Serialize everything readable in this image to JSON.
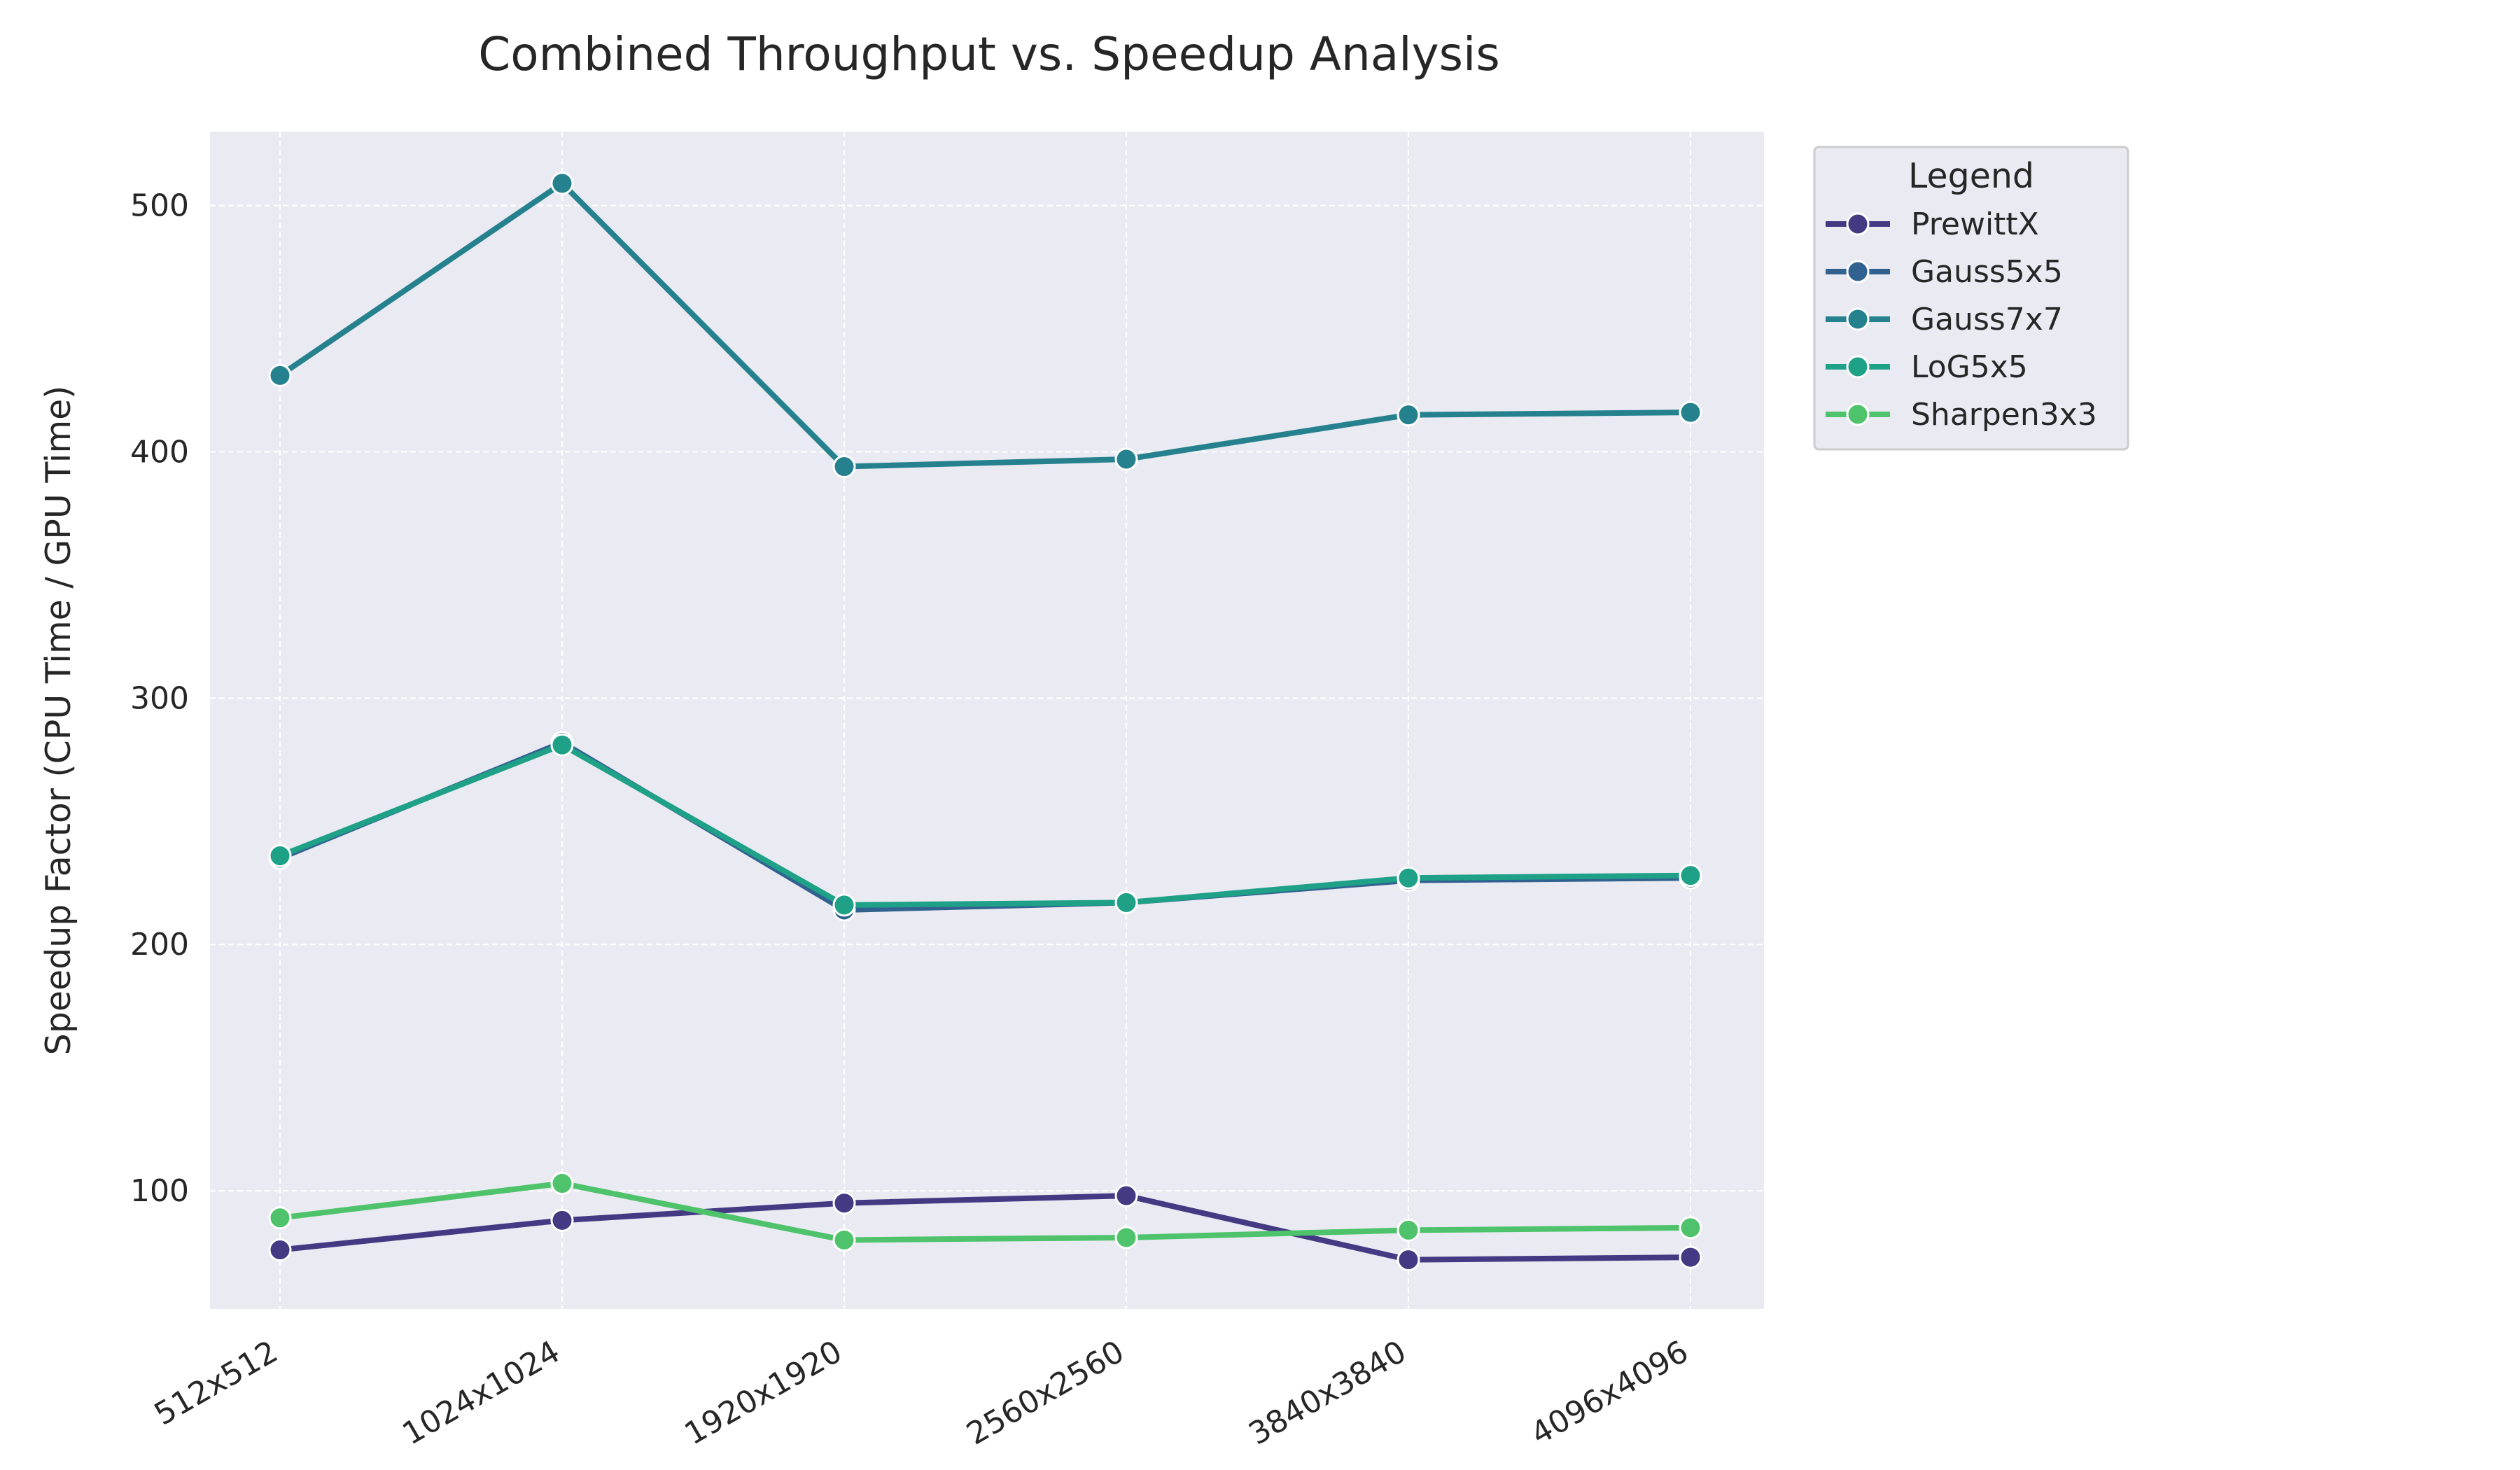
{
  "chart_data": {
    "type": "line",
    "title": "Combined Throughput vs. Speedup Analysis",
    "xlabel": "",
    "ylabel": "Speedup Factor (CPU Time / GPU Time)",
    "categories": [
      "512x512",
      "1024x1024",
      "1920x1920",
      "2560x2560",
      "3840x3840",
      "4096x4096"
    ],
    "ylim": [
      52,
      530
    ],
    "yticks": [
      100,
      200,
      300,
      400,
      500
    ],
    "grid": true,
    "legend": {
      "title": "Legend",
      "placement": "outside-top-right"
    },
    "series": [
      {
        "name": "PrewittX",
        "color": "#433a83",
        "values": [
          76,
          88,
          95,
          98,
          72,
          73
        ]
      },
      {
        "name": "Gauss5x5",
        "color": "#31628f",
        "values": [
          235,
          282,
          214,
          217,
          226,
          227
        ]
      },
      {
        "name": "Gauss7x7",
        "color": "#26818e",
        "values": [
          431,
          509,
          394,
          397,
          415,
          416
        ]
      },
      {
        "name": "LoG5x5",
        "color": "#1fa188",
        "values": [
          236,
          281,
          216,
          217,
          227,
          228
        ]
      },
      {
        "name": "Sharpen3x3",
        "color": "#4ec36b",
        "values": [
          89,
          103,
          80,
          81,
          84,
          85
        ]
      }
    ]
  }
}
